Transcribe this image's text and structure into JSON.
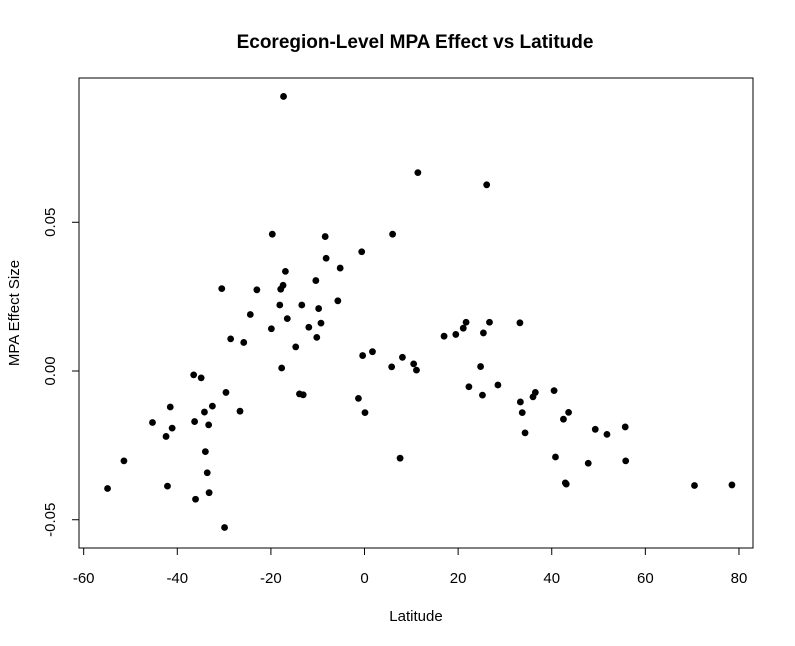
{
  "chart_data": {
    "type": "scatter",
    "title": "Ecoregion-Level MPA Effect vs Latitude",
    "xlabel": "Latitude",
    "ylabel": "MPA Effect Size",
    "xlim": [
      -61,
      83
    ],
    "ylim": [
      -0.0595,
      0.0985
    ],
    "xticks": [
      -60,
      -40,
      -20,
      0,
      20,
      40,
      60,
      80
    ],
    "xtick_labels": [
      "-60",
      "-40",
      "-20",
      "0",
      "20",
      "40",
      "60",
      "80"
    ],
    "yticks": [
      -0.05,
      0.0,
      0.05
    ],
    "ytick_labels": [
      "-0.05",
      "0.00",
      "0.05"
    ],
    "grid": false,
    "marker_color": "#000000",
    "points": [
      {
        "x": -54.9,
        "y": -0.0395
      },
      {
        "x": -51.4,
        "y": -0.0302
      },
      {
        "x": -45.3,
        "y": -0.0173
      },
      {
        "x": -42.4,
        "y": -0.022
      },
      {
        "x": -42.1,
        "y": -0.0387
      },
      {
        "x": -41.5,
        "y": -0.0121
      },
      {
        "x": -41.1,
        "y": -0.0192
      },
      {
        "x": -36.5,
        "y": -0.0013
      },
      {
        "x": -36.3,
        "y": -0.017
      },
      {
        "x": -36.1,
        "y": -0.0431
      },
      {
        "x": -34.9,
        "y": -0.0023
      },
      {
        "x": -34.2,
        "y": -0.0138
      },
      {
        "x": -34.0,
        "y": -0.0271
      },
      {
        "x": -33.6,
        "y": -0.0342
      },
      {
        "x": -33.3,
        "y": -0.0181
      },
      {
        "x": -33.2,
        "y": -0.0409
      },
      {
        "x": -32.5,
        "y": -0.0118
      },
      {
        "x": -30.5,
        "y": 0.0277
      },
      {
        "x": -29.9,
        "y": -0.0526
      },
      {
        "x": -29.6,
        "y": -0.0072
      },
      {
        "x": -28.6,
        "y": 0.0108
      },
      {
        "x": -26.6,
        "y": -0.0135
      },
      {
        "x": -25.8,
        "y": 0.0096
      },
      {
        "x": -24.4,
        "y": 0.019
      },
      {
        "x": -23.0,
        "y": 0.0273
      },
      {
        "x": -19.9,
        "y": 0.0142
      },
      {
        "x": -19.7,
        "y": 0.046
      },
      {
        "x": -18.1,
        "y": 0.0222
      },
      {
        "x": -17.9,
        "y": 0.0275
      },
      {
        "x": -17.7,
        "y": 0.001
      },
      {
        "x": -17.4,
        "y": 0.0288
      },
      {
        "x": -17.3,
        "y": 0.0923
      },
      {
        "x": -16.9,
        "y": 0.0335
      },
      {
        "x": -16.5,
        "y": 0.0176
      },
      {
        "x": -14.7,
        "y": 0.0081
      },
      {
        "x": -13.9,
        "y": -0.0077
      },
      {
        "x": -13.4,
        "y": 0.0222
      },
      {
        "x": -13.1,
        "y": -0.008
      },
      {
        "x": -11.9,
        "y": 0.0147
      },
      {
        "x": -10.4,
        "y": 0.0304
      },
      {
        "x": -10.2,
        "y": 0.0113
      },
      {
        "x": -9.8,
        "y": 0.021
      },
      {
        "x": -9.3,
        "y": 0.0161
      },
      {
        "x": -8.4,
        "y": 0.0452
      },
      {
        "x": -8.2,
        "y": 0.0379
      },
      {
        "x": -5.7,
        "y": 0.0236
      },
      {
        "x": -5.2,
        "y": 0.0346
      },
      {
        "x": -1.3,
        "y": -0.0092
      },
      {
        "x": -0.6,
        "y": 0.0401
      },
      {
        "x": -0.4,
        "y": 0.0052
      },
      {
        "x": 0.1,
        "y": -0.014
      },
      {
        "x": 1.7,
        "y": 0.0065
      },
      {
        "x": 5.8,
        "y": 0.0014
      },
      {
        "x": 6.0,
        "y": 0.046
      },
      {
        "x": 7.6,
        "y": -0.0293
      },
      {
        "x": 8.1,
        "y": 0.0046
      },
      {
        "x": 10.5,
        "y": 0.0024
      },
      {
        "x": 11.1,
        "y": 0.0003
      },
      {
        "x": 11.4,
        "y": 0.0667
      },
      {
        "x": 17.0,
        "y": 0.0117
      },
      {
        "x": 19.5,
        "y": 0.0123
      },
      {
        "x": 21.1,
        "y": 0.0144
      },
      {
        "x": 21.7,
        "y": 0.0164
      },
      {
        "x": 22.3,
        "y": -0.0053
      },
      {
        "x": 24.8,
        "y": 0.0015
      },
      {
        "x": 25.2,
        "y": -0.0081
      },
      {
        "x": 25.4,
        "y": 0.0128
      },
      {
        "x": 26.1,
        "y": 0.0626
      },
      {
        "x": 26.7,
        "y": 0.0164
      },
      {
        "x": 28.5,
        "y": -0.0047
      },
      {
        "x": 33.2,
        "y": 0.0162
      },
      {
        "x": 33.3,
        "y": -0.0104
      },
      {
        "x": 33.7,
        "y": -0.014
      },
      {
        "x": 34.3,
        "y": -0.0208
      },
      {
        "x": 36.0,
        "y": -0.0087
      },
      {
        "x": 36.5,
        "y": -0.0072
      },
      {
        "x": 40.5,
        "y": -0.0066
      },
      {
        "x": 40.8,
        "y": -0.0289
      },
      {
        "x": 42.5,
        "y": -0.0162
      },
      {
        "x": 42.9,
        "y": -0.0376
      },
      {
        "x": 43.1,
        "y": -0.038
      },
      {
        "x": 43.6,
        "y": -0.0139
      },
      {
        "x": 47.8,
        "y": -0.031
      },
      {
        "x": 49.3,
        "y": -0.0196
      },
      {
        "x": 51.8,
        "y": -0.0213
      },
      {
        "x": 55.7,
        "y": -0.0188
      },
      {
        "x": 55.8,
        "y": -0.0302
      },
      {
        "x": 70.5,
        "y": -0.0385
      },
      {
        "x": 78.5,
        "y": -0.0383
      }
    ]
  }
}
